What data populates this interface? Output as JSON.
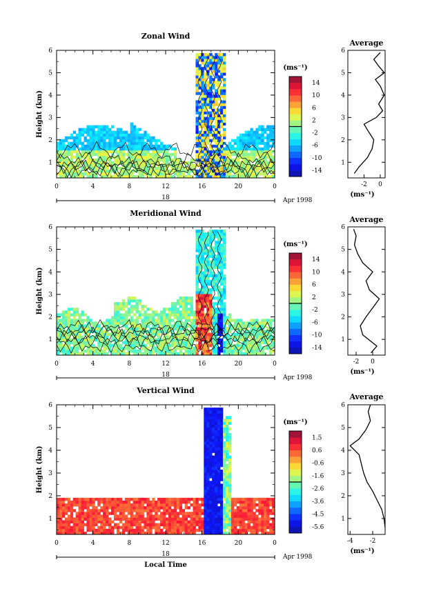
{
  "chart_data": [
    {
      "type": "heatmap",
      "title": "Zonal Wind",
      "ylabel": "Height (km)",
      "ylim": [
        0.3,
        6
      ],
      "yticks": [
        "1",
        "2",
        "3",
        "4",
        "5",
        "6"
      ],
      "x_ticks": [
        "0",
        "4",
        "8",
        "12",
        "16",
        "20",
        "0"
      ],
      "date_label": "18",
      "month_label": "Apr 1998",
      "colorbar": {
        "unit": "(ms⁻¹)",
        "ticks": [
          "14",
          "10",
          "6",
          "2",
          "-2",
          "-6",
          "-10",
          "-14"
        ],
        "range": [
          -16,
          16
        ]
      },
      "profile": {
        "title": "Average",
        "xlabel": "(ms⁻¹)",
        "x_ticks": [
          "-2",
          "0"
        ],
        "xlim": [
          -4,
          0.6
        ],
        "points": [
          [
            -3.2,
            0.5
          ],
          [
            -2.6,
            0.8
          ],
          [
            -1.6,
            1.2
          ],
          [
            -1.0,
            1.6
          ],
          [
            -0.8,
            2.0
          ],
          [
            -1.5,
            2.4
          ],
          [
            -2.0,
            2.7
          ],
          [
            -0.5,
            3.0
          ],
          [
            0.3,
            3.3
          ],
          [
            -0.2,
            3.6
          ],
          [
            0.5,
            4.0
          ],
          [
            0.0,
            4.4
          ],
          [
            -0.6,
            4.7
          ],
          [
            0.5,
            5.0
          ],
          [
            -0.2,
            5.3
          ],
          [
            -0.8,
            5.6
          ],
          [
            0.0,
            5.9
          ]
        ]
      }
    },
    {
      "type": "heatmap",
      "title": "Meridional Wind",
      "ylabel": "Height (km)",
      "ylim": [
        0.3,
        6
      ],
      "yticks": [
        "1",
        "2",
        "3",
        "4",
        "5",
        "6"
      ],
      "x_ticks": [
        "0",
        "4",
        "8",
        "12",
        "16",
        "20",
        "0"
      ],
      "date_label": "18",
      "month_label": "Apr 1998",
      "colorbar": {
        "unit": "(ms⁻¹)",
        "ticks": [
          "14",
          "10",
          "6",
          "2",
          "-2",
          "-6",
          "-10",
          "-14"
        ],
        "range": [
          -16,
          16
        ]
      },
      "profile": {
        "title": "Average",
        "xlabel": "(ms⁻¹)",
        "x_ticks": [
          "-2",
          "0"
        ],
        "xlim": [
          -3,
          1.5
        ],
        "points": [
          [
            -0.2,
            0.4
          ],
          [
            0.5,
            0.7
          ],
          [
            -1.2,
            1.2
          ],
          [
            -1.5,
            1.6
          ],
          [
            -0.8,
            2.0
          ],
          [
            0.0,
            2.4
          ],
          [
            0.8,
            2.8
          ],
          [
            -0.4,
            3.2
          ],
          [
            -0.8,
            3.6
          ],
          [
            0.0,
            4.0
          ],
          [
            -1.2,
            4.4
          ],
          [
            -1.8,
            4.8
          ],
          [
            -2.2,
            5.2
          ],
          [
            -2.0,
            5.6
          ],
          [
            -2.3,
            5.9
          ]
        ]
      }
    },
    {
      "type": "heatmap",
      "title": "Vertical Wind",
      "ylabel": "Height (km)",
      "ylim": [
        0.3,
        6
      ],
      "yticks": [
        "1",
        "2",
        "3",
        "4",
        "5",
        "6"
      ],
      "x_ticks": [
        "0",
        "4",
        "8",
        "12",
        "16",
        "20",
        "0"
      ],
      "date_label": "18",
      "month_label": "Apr 1998",
      "xlabel": "Local Time",
      "colorbar": {
        "unit": "(ms⁻¹)",
        "ticks": [
          "1.5",
          "0.6",
          "-0.6",
          "-1.6",
          "-2.6",
          "-3.6",
          "-4.5",
          "-5.6"
        ],
        "range": [
          -6,
          2
        ]
      },
      "profile": {
        "title": "Average",
        "xlabel": "(ms⁻¹)",
        "x_ticks": [
          "-4",
          "-2"
        ],
        "xlim": [
          -4.2,
          -0.9
        ],
        "points": [
          [
            -0.9,
            0.6
          ],
          [
            -1.0,
            1.0
          ],
          [
            -1.2,
            1.4
          ],
          [
            -1.6,
            1.8
          ],
          [
            -2.0,
            2.2
          ],
          [
            -2.5,
            2.6
          ],
          [
            -2.8,
            3.0
          ],
          [
            -3.0,
            3.4
          ],
          [
            -3.2,
            3.8
          ],
          [
            -4.0,
            4.2
          ],
          [
            -3.2,
            4.5
          ],
          [
            -2.6,
            4.9
          ],
          [
            -2.2,
            5.3
          ],
          [
            -2.4,
            5.7
          ],
          [
            -2.2,
            6.0
          ]
        ]
      }
    }
  ]
}
